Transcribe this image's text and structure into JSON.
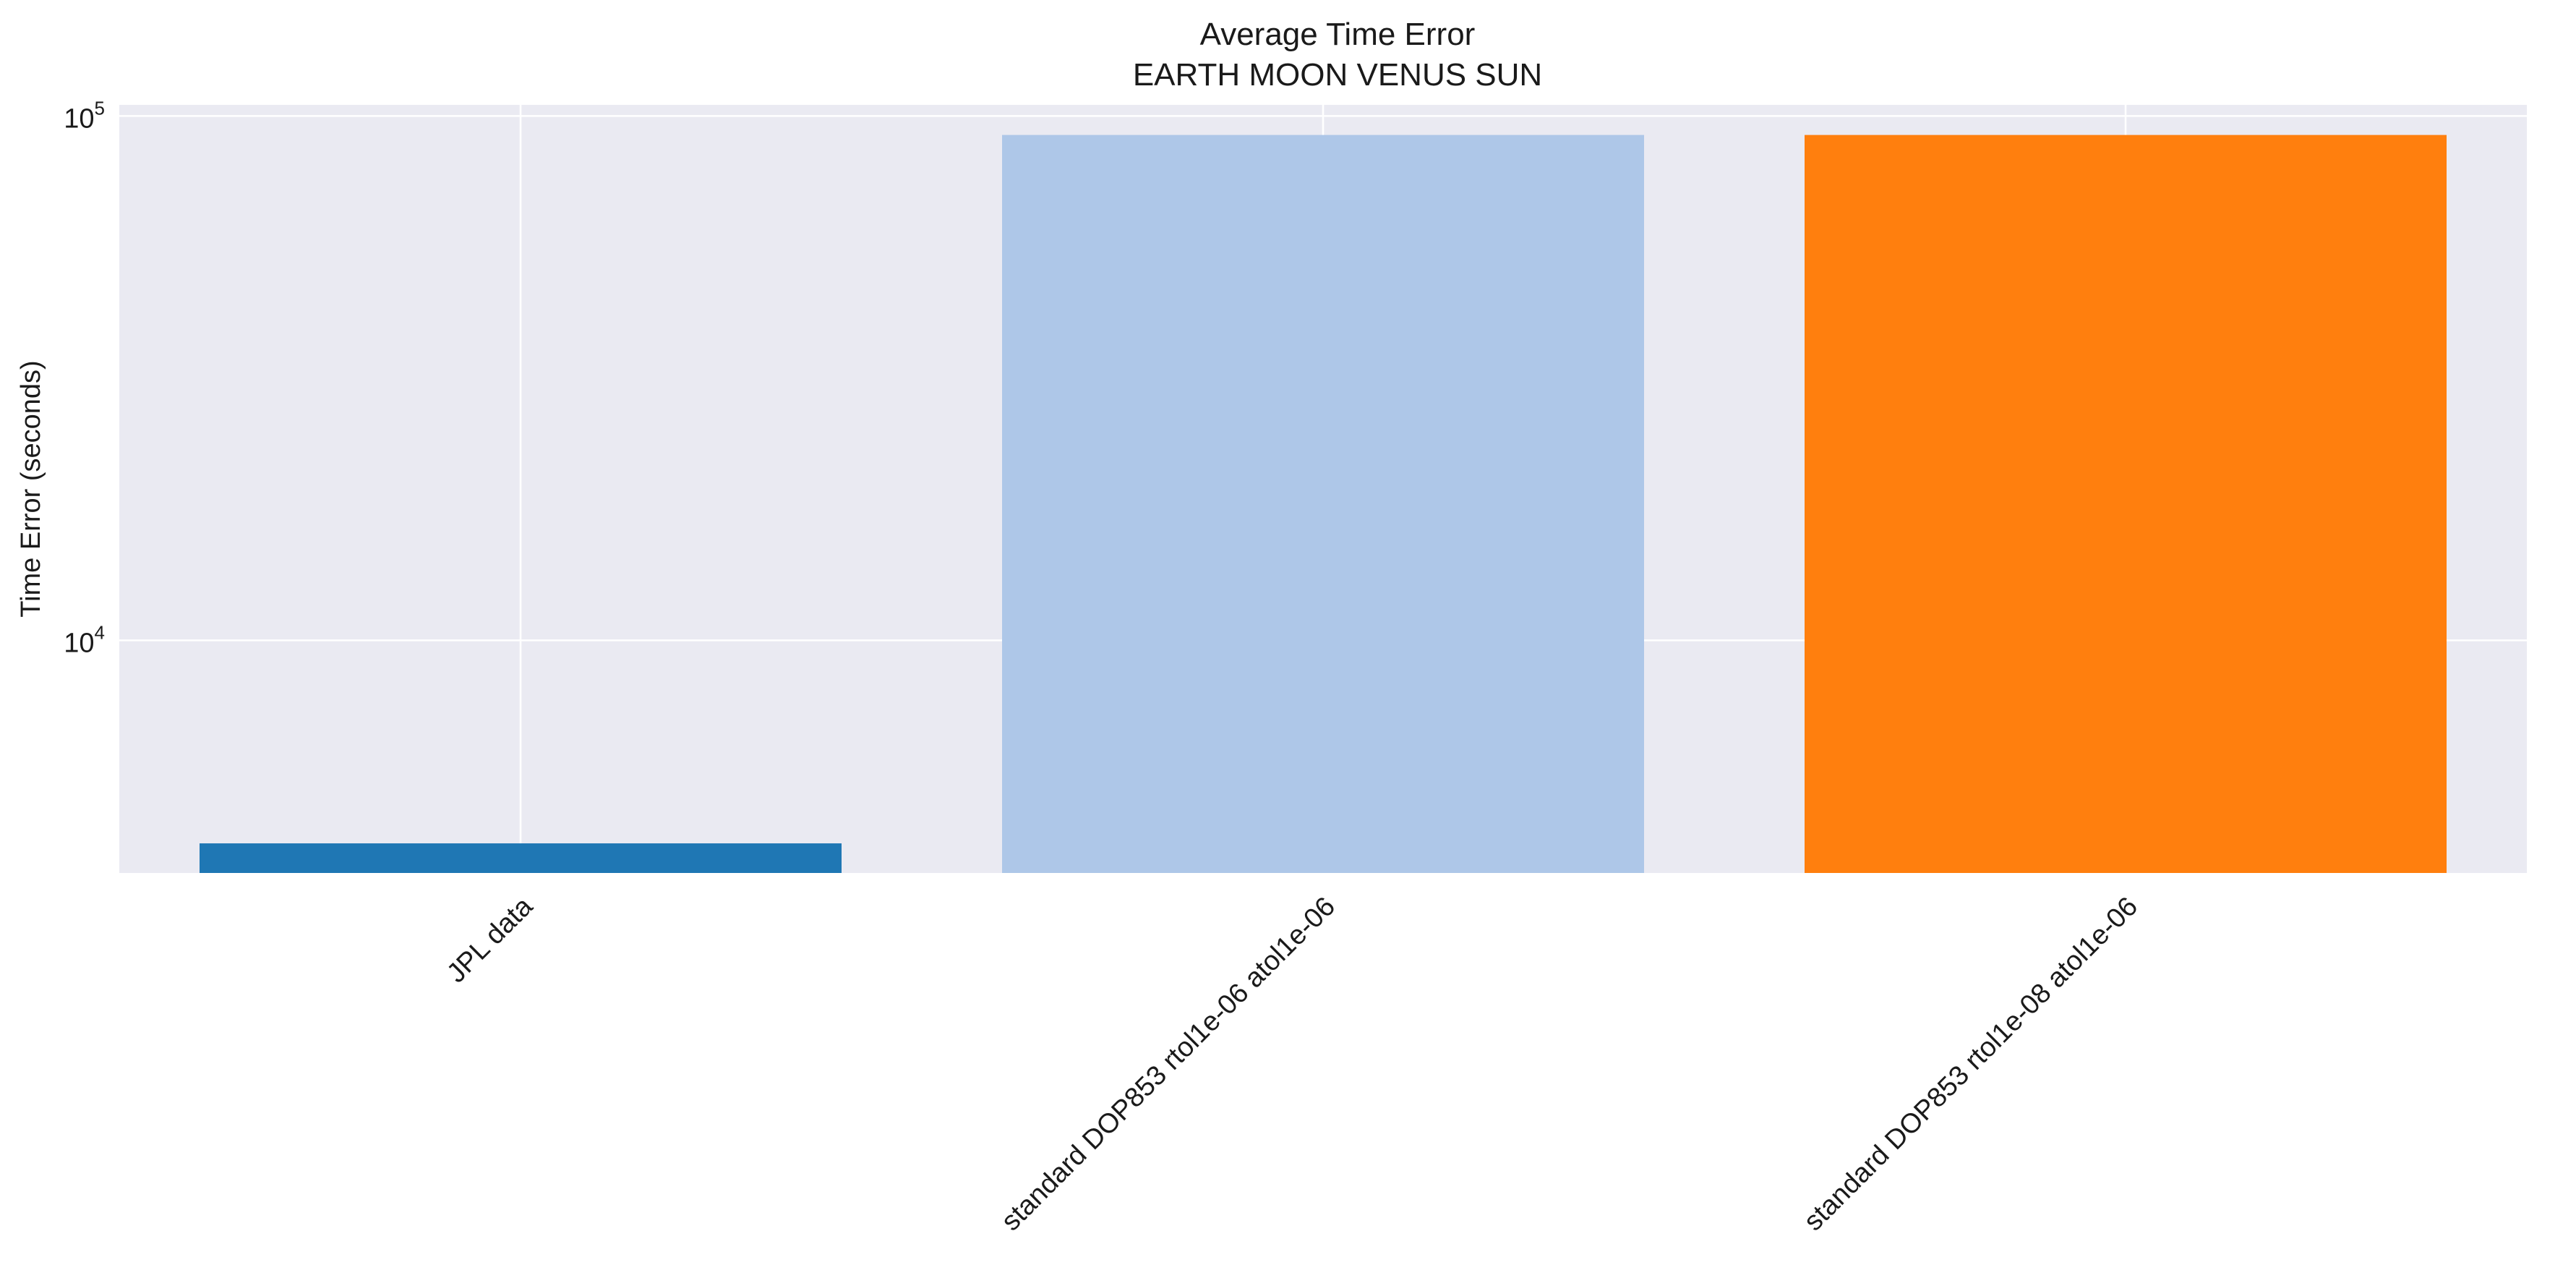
{
  "chart_data": {
    "type": "bar",
    "title": "Average Time Error",
    "subtitle": "EARTH MOON VENUS SUN",
    "xlabel": "",
    "ylabel": "Time Error (seconds)",
    "yscale": "log",
    "ylim": [
      3600,
      105000
    ],
    "yticks": [
      {
        "base": "10",
        "exp": "4"
      },
      {
        "base": "10",
        "exp": "5"
      }
    ],
    "grid": true,
    "background": "#eaeaf2",
    "gridColor": "#ffffff",
    "categories": [
      "JPL data",
      "standard DOP853 rtol1e-06 atol1e-06",
      "standard DOP853 rtol1e-08 atol1e-06"
    ],
    "values": [
      4100,
      92000,
      92000
    ],
    "colors": [
      "#1f77b4",
      "#aec7e8",
      "#ff7f0e"
    ]
  }
}
